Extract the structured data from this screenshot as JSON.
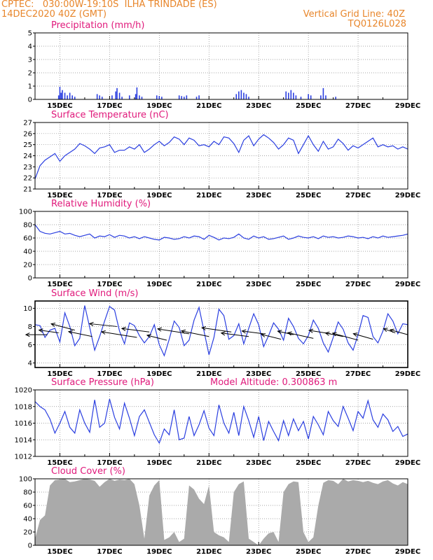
{
  "header": {
    "line1": "CPTEC:   030:00W-19:10S  ILHA TRINDADE (ES)",
    "line2": "14DEC2020 40Z (GMT)",
    "grid_note": "Vertical Grid Line: 40Z",
    "code": "TQ0126L028"
  },
  "x_labels": [
    "15DEC",
    "17DEC",
    "19DEC",
    "21DEC",
    "23DEC",
    "25DEC",
    "27DEC",
    "29DEC"
  ],
  "colors": {
    "line": "#2b3fe0",
    "bar": "#2b3fe0",
    "cloud": "#aaaaaa",
    "title": "#e0197b",
    "header": "#e8862b"
  },
  "chart_data": [
    {
      "type": "bar",
      "title": "Precipitation (mm/h)",
      "ylim": [
        0,
        5
      ],
      "yticks": [
        0,
        1,
        2,
        3,
        4,
        5
      ],
      "x_range": [
        14.0,
        29.0
      ],
      "bars": [
        [
          14.95,
          0.3
        ],
        [
          15.0,
          0.95
        ],
        [
          15.05,
          0.5
        ],
        [
          15.1,
          0.7
        ],
        [
          15.2,
          0.5
        ],
        [
          15.3,
          0.3
        ],
        [
          15.4,
          0.5
        ],
        [
          15.5,
          0.3
        ],
        [
          15.6,
          0.2
        ],
        [
          16.5,
          0.4
        ],
        [
          16.6,
          0.3
        ],
        [
          16.7,
          0.2
        ],
        [
          17.1,
          0.3
        ],
        [
          17.25,
          0.6
        ],
        [
          17.3,
          0.85
        ],
        [
          17.4,
          0.5
        ],
        [
          17.5,
          0.2
        ],
        [
          17.8,
          0.3
        ],
        [
          18.05,
          0.4
        ],
        [
          18.1,
          0.9
        ],
        [
          18.2,
          0.3
        ],
        [
          18.3,
          0.2
        ],
        [
          18.9,
          0.3
        ],
        [
          19.0,
          0.25
        ],
        [
          19.1,
          0.2
        ],
        [
          19.8,
          0.3
        ],
        [
          19.9,
          0.25
        ],
        [
          20.0,
          0.2
        ],
        [
          20.1,
          0.3
        ],
        [
          20.5,
          0.2
        ],
        [
          20.6,
          0.3
        ],
        [
          22.1,
          0.4
        ],
        [
          22.2,
          0.6
        ],
        [
          22.3,
          0.7
        ],
        [
          22.4,
          0.5
        ],
        [
          22.5,
          0.4
        ],
        [
          22.6,
          0.2
        ],
        [
          24.1,
          0.6
        ],
        [
          24.2,
          0.5
        ],
        [
          24.3,
          0.7
        ],
        [
          24.4,
          0.5
        ],
        [
          24.5,
          0.3
        ],
        [
          24.7,
          0.2
        ],
        [
          25.0,
          0.4
        ],
        [
          25.1,
          0.3
        ],
        [
          25.5,
          0.3
        ],
        [
          25.6,
          0.85
        ],
        [
          25.7,
          0.3
        ],
        [
          26.1,
          0.2
        ]
      ]
    },
    {
      "type": "line",
      "title": "Surface Temperature (nC)",
      "ylim": [
        21,
        27
      ],
      "yticks": [
        21,
        22,
        23,
        24,
        25,
        26,
        27
      ],
      "x": [
        14.0,
        14.2,
        14.4,
        14.6,
        14.8,
        15.0,
        15.2,
        15.4,
        15.6,
        15.8,
        16.0,
        16.2,
        16.4,
        16.6,
        16.8,
        17.0,
        17.2,
        17.4,
        17.6,
        17.8,
        18.0,
        18.2,
        18.4,
        18.6,
        18.8,
        19.0,
        19.2,
        19.4,
        19.6,
        19.8,
        20.0,
        20.2,
        20.4,
        20.6,
        20.8,
        21.0,
        21.2,
        21.4,
        21.6,
        21.8,
        22.0,
        22.2,
        22.4,
        22.6,
        22.8,
        23.0,
        23.2,
        23.4,
        23.6,
        23.8,
        24.0,
        24.2,
        24.4,
        24.6,
        24.8,
        25.0,
        25.2,
        25.4,
        25.6,
        25.8,
        26.0,
        26.2,
        26.4,
        26.6,
        26.8,
        27.0,
        27.2,
        27.4,
        27.6,
        27.8,
        28.0,
        28.2,
        28.4,
        28.6,
        28.8,
        29.0
      ],
      "y": [
        21.9,
        23.1,
        23.6,
        23.9,
        24.2,
        23.5,
        24.0,
        24.3,
        24.6,
        25.1,
        24.9,
        24.6,
        24.2,
        24.7,
        24.8,
        25.0,
        24.3,
        24.5,
        24.5,
        24.8,
        24.6,
        25.0,
        24.3,
        24.6,
        25.0,
        25.3,
        24.9,
        25.2,
        25.7,
        25.5,
        25.0,
        25.6,
        25.4,
        24.9,
        25.0,
        24.8,
        25.3,
        25.0,
        25.7,
        25.6,
        25.1,
        24.3,
        25.4,
        25.8,
        24.9,
        25.5,
        25.9,
        25.6,
        25.2,
        24.6,
        25.0,
        25.6,
        25.4,
        24.2,
        25.0,
        25.8,
        25.0,
        24.4,
        25.3,
        24.6,
        24.8,
        25.5,
        25.1,
        24.5,
        24.9,
        24.7,
        25.0,
        25.3,
        25.6,
        24.8,
        25.0,
        24.8,
        24.9,
        24.6,
        24.8,
        24.6
      ]
    },
    {
      "type": "line",
      "title": "Relative Humidity (%)",
      "ylim": [
        0,
        100
      ],
      "yticks": [
        0,
        20,
        40,
        60,
        80,
        100
      ],
      "x": [
        14.0,
        14.2,
        14.4,
        14.6,
        14.8,
        15.0,
        15.2,
        15.4,
        15.6,
        15.8,
        16.0,
        16.2,
        16.4,
        16.6,
        16.8,
        17.0,
        17.2,
        17.4,
        17.6,
        17.8,
        18.0,
        18.2,
        18.4,
        18.6,
        18.8,
        19.0,
        19.2,
        19.4,
        19.6,
        19.8,
        20.0,
        20.2,
        20.4,
        20.6,
        20.8,
        21.0,
        21.2,
        21.4,
        21.6,
        21.8,
        22.0,
        22.2,
        22.4,
        22.6,
        22.8,
        23.0,
        23.2,
        23.4,
        23.6,
        23.8,
        24.0,
        24.2,
        24.4,
        24.6,
        24.8,
        25.0,
        25.2,
        25.4,
        25.6,
        25.8,
        26.0,
        26.2,
        26.4,
        26.6,
        26.8,
        27.0,
        27.2,
        27.4,
        27.6,
        27.8,
        28.0,
        28.2,
        28.4,
        28.6,
        28.8,
        29.0
      ],
      "y": [
        80,
        70,
        67,
        66,
        68,
        70,
        66,
        67,
        64,
        62,
        64,
        66,
        60,
        63,
        62,
        65,
        61,
        64,
        63,
        60,
        62,
        59,
        62,
        60,
        58,
        57,
        61,
        60,
        58,
        59,
        62,
        60,
        63,
        62,
        58,
        64,
        61,
        57,
        60,
        59,
        61,
        66,
        60,
        58,
        63,
        60,
        62,
        58,
        59,
        61,
        63,
        58,
        60,
        63,
        61,
        60,
        62,
        59,
        63,
        61,
        62,
        60,
        61,
        63,
        62,
        60,
        61,
        59,
        62,
        60,
        63,
        61,
        62,
        63,
        64,
        66
      ]
    },
    {
      "type": "line",
      "title": "Surface Wind (m/s)",
      "ylim": [
        3.5,
        10.8
      ],
      "yticks": [
        4,
        6,
        8,
        10
      ],
      "x": [
        14.0,
        14.2,
        14.4,
        14.6,
        14.8,
        15.0,
        15.2,
        15.4,
        15.6,
        15.8,
        16.0,
        16.2,
        16.4,
        16.6,
        16.8,
        17.0,
        17.2,
        17.4,
        17.6,
        17.8,
        18.0,
        18.2,
        18.4,
        18.6,
        18.8,
        19.0,
        19.2,
        19.4,
        19.6,
        19.8,
        20.0,
        20.2,
        20.4,
        20.6,
        20.8,
        21.0,
        21.2,
        21.4,
        21.6,
        21.8,
        22.0,
        22.2,
        22.4,
        22.6,
        22.8,
        23.0,
        23.2,
        23.4,
        23.6,
        23.8,
        24.0,
        24.2,
        24.4,
        24.6,
        24.8,
        25.0,
        25.2,
        25.4,
        25.6,
        25.8,
        26.0,
        26.2,
        26.4,
        26.6,
        26.8,
        27.0,
        27.2,
        27.4,
        27.6,
        27.8,
        28.0,
        28.2,
        28.4,
        28.6,
        28.8,
        29.0
      ],
      "y": [
        8.2,
        8.1,
        6.8,
        7.6,
        7.8,
        6.3,
        9.5,
        8.0,
        5.9,
        6.7,
        10.3,
        7.9,
        5.4,
        6.9,
        8.6,
        10.2,
        9.8,
        7.5,
        6.1,
        8.4,
        8.1,
        7.0,
        6.2,
        6.9,
        8.2,
        6.0,
        4.8,
        6.6,
        8.6,
        7.9,
        5.9,
        6.5,
        8.7,
        10.1,
        7.5,
        4.9,
        6.8,
        9.9,
        9.2,
        6.6,
        7.0,
        8.3,
        6.1,
        7.8,
        9.4,
        8.2,
        5.8,
        7.0,
        8.4,
        7.7,
        6.5,
        8.9,
        8.0,
        6.7,
        6.1,
        7.0,
        8.7,
        7.8,
        6.2,
        5.2,
        6.8,
        8.5,
        7.7,
        6.2,
        5.4,
        7.1,
        9.2,
        9.0,
        6.9,
        6.2,
        7.5,
        9.4,
        8.6,
        7.2,
        8.3,
        8.2
      ],
      "arrows": [
        [
          14.5,
          7.1,
          -0.55,
          0.0
        ],
        [
          14.95,
          7.3,
          -0.5,
          0.2
        ],
        [
          15.6,
          7.6,
          -0.6,
          0.45
        ],
        [
          16.3,
          6.9,
          -0.6,
          0.35
        ],
        [
          17.3,
          8.0,
          -0.7,
          0.2
        ],
        [
          18.1,
          6.8,
          -0.9,
          0.4
        ],
        [
          18.6,
          7.4,
          -0.7,
          0.25
        ],
        [
          19.3,
          6.5,
          -0.5,
          0.35
        ],
        [
          20.2,
          7.2,
          -0.8,
          0.35
        ],
        [
          21.0,
          6.9,
          -0.7,
          0.4
        ],
        [
          21.9,
          7.4,
          -0.75,
          0.3
        ],
        [
          22.6,
          6.9,
          -0.7,
          0.25
        ],
        [
          23.2,
          7.2,
          -0.55,
          0.2
        ],
        [
          23.9,
          6.6,
          -0.5,
          0.35
        ],
        [
          24.4,
          7.1,
          -0.4,
          0.25
        ],
        [
          25.2,
          6.7,
          -0.65,
          0.4
        ],
        [
          25.9,
          7.2,
          -0.55,
          0.25
        ],
        [
          26.4,
          6.9,
          -0.45,
          0.25
        ],
        [
          27.0,
          6.5,
          -0.65,
          0.5
        ],
        [
          27.6,
          6.6,
          -0.5,
          0.4
        ],
        [
          28.5,
          7.3,
          -0.3,
          0.3
        ],
        [
          29.0,
          7.1,
          -0.45,
          0.35
        ]
      ]
    },
    {
      "type": "line",
      "title": "Surface Pressure (hPa)",
      "annotation": "Model Altitude: 0.300863 m",
      "ylim": [
        1012,
        1020
      ],
      "yticks": [
        1012,
        1014,
        1016,
        1018,
        1020
      ],
      "x": [
        14.0,
        14.2,
        14.4,
        14.6,
        14.8,
        15.0,
        15.2,
        15.4,
        15.6,
        15.8,
        16.0,
        16.2,
        16.4,
        16.6,
        16.8,
        17.0,
        17.2,
        17.4,
        17.6,
        17.8,
        18.0,
        18.2,
        18.4,
        18.6,
        18.8,
        19.0,
        19.2,
        19.4,
        19.6,
        19.8,
        20.0,
        20.2,
        20.4,
        20.6,
        20.8,
        21.0,
        21.2,
        21.4,
        21.6,
        21.8,
        22.0,
        22.2,
        22.4,
        22.6,
        22.8,
        23.0,
        23.2,
        23.4,
        23.6,
        23.8,
        24.0,
        24.2,
        24.4,
        24.6,
        24.8,
        25.0,
        25.2,
        25.4,
        25.6,
        25.8,
        26.0,
        26.2,
        26.4,
        26.6,
        26.8,
        27.0,
        27.2,
        27.4,
        27.6,
        27.8,
        28.0,
        28.2,
        28.4,
        28.6,
        28.8,
        29.0
      ],
      "y": [
        1018.6,
        1018.0,
        1017.6,
        1016.5,
        1014.8,
        1016.0,
        1017.4,
        1015.5,
        1014.8,
        1017.6,
        1016.0,
        1014.9,
        1018.8,
        1015.5,
        1016.0,
        1018.9,
        1016.7,
        1015.3,
        1018.4,
        1016.6,
        1014.5,
        1016.8,
        1017.6,
        1016.1,
        1014.6,
        1013.6,
        1015.3,
        1014.6,
        1017.6,
        1014.0,
        1014.2,
        1016.8,
        1014.5,
        1015.8,
        1017.5,
        1015.4,
        1014.5,
        1018.2,
        1016.0,
        1014.8,
        1017.3,
        1014.5,
        1018.0,
        1016.3,
        1014.3,
        1016.8,
        1013.9,
        1016.2,
        1015.0,
        1013.9,
        1016.3,
        1014.5,
        1016.5,
        1015.1,
        1016.2,
        1014.1,
        1016.8,
        1015.8,
        1014.6,
        1017.4,
        1016.3,
        1015.6,
        1018.0,
        1016.6,
        1015.1,
        1017.4,
        1016.6,
        1018.7,
        1016.4,
        1015.5,
        1017.1,
        1016.4,
        1015.0,
        1015.6,
        1014.4,
        1014.7
      ]
    },
    {
      "type": "area",
      "title": "Cloud Cover (%)",
      "ylim": [
        0,
        100
      ],
      "yticks": [
        0,
        20,
        40,
        60,
        80,
        100
      ],
      "x": [
        14.0,
        14.2,
        14.4,
        14.6,
        14.8,
        15.0,
        15.2,
        15.4,
        15.6,
        15.8,
        16.0,
        16.2,
        16.4,
        16.6,
        16.8,
        17.0,
        17.2,
        17.4,
        17.6,
        17.8,
        18.0,
        18.2,
        18.4,
        18.6,
        18.8,
        19.0,
        19.2,
        19.4,
        19.6,
        19.8,
        20.0,
        20.2,
        20.4,
        20.6,
        20.8,
        21.0,
        21.2,
        21.4,
        21.6,
        21.8,
        22.0,
        22.2,
        22.4,
        22.6,
        22.8,
        23.0,
        23.2,
        23.4,
        23.6,
        23.8,
        24.0,
        24.2,
        24.4,
        24.6,
        24.8,
        25.0,
        25.2,
        25.4,
        25.6,
        25.8,
        26.0,
        26.2,
        26.4,
        26.6,
        26.8,
        27.0,
        27.2,
        27.4,
        27.6,
        27.8,
        28.0,
        28.2,
        28.4,
        28.6,
        28.8,
        29.0
      ],
      "y": [
        10,
        38,
        45,
        90,
        98,
        99,
        100,
        95,
        96,
        98,
        100,
        99,
        97,
        88,
        95,
        100,
        97,
        99,
        98,
        100,
        92,
        60,
        10,
        75,
        90,
        98,
        8,
        12,
        20,
        5,
        10,
        90,
        84,
        70,
        62,
        90,
        20,
        15,
        12,
        5,
        80,
        92,
        96,
        10,
        5,
        0,
        10,
        18,
        20,
        5,
        80,
        92,
        96,
        95,
        20,
        5,
        12,
        60,
        94,
        98,
        97,
        92,
        100,
        96,
        98,
        97,
        95,
        97,
        94,
        92,
        96,
        98,
        93,
        90,
        95,
        92
      ]
    }
  ]
}
